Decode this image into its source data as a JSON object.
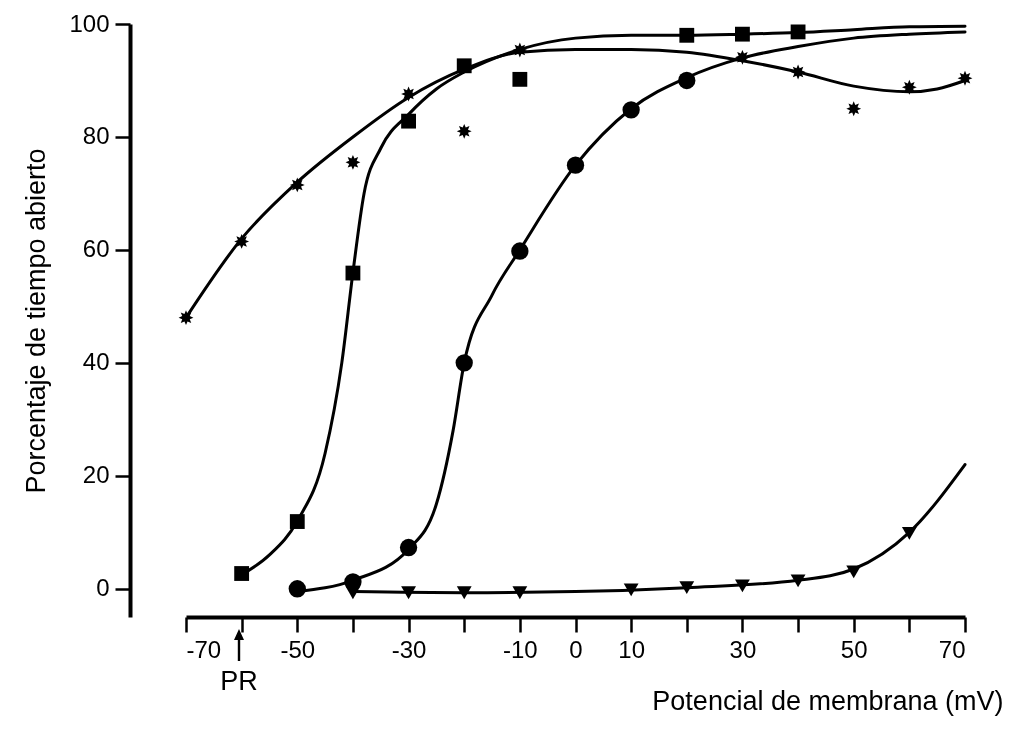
{
  "chart_data": {
    "type": "scatter",
    "xlabel": "Potencial de membrana (mV)",
    "ylabel": "Porcentaje de tiempo abierto",
    "xlim": [
      -70,
      70
    ],
    "ylim": [
      -5,
      100
    ],
    "xticks": [
      -70,
      {
        "value": -60,
        "label": null
      },
      -50,
      {
        "value": -40,
        "label": null
      },
      -30,
      {
        "value": -20,
        "label": null
      },
      -10,
      0,
      10,
      {
        "value": 20,
        "label": null
      },
      30,
      {
        "value": 40,
        "label": null
      },
      50,
      {
        "value": 60,
        "label": null
      },
      70
    ],
    "yticks": [
      0,
      20,
      40,
      60,
      80,
      100
    ],
    "grid": false,
    "annotations": [
      "PR"
    ],
    "series": [
      {
        "type": "line",
        "color": "#000000",
        "marker": "none",
        "line_style": "solid",
        "x": [
          -70,
          -60,
          -50,
          -40,
          -30,
          -20,
          -10,
          0,
          10,
          20,
          30,
          40,
          50,
          60,
          65,
          70
        ],
        "values": [
          48,
          62,
          72,
          80,
          87,
          92,
          95,
          95.5,
          95.5,
          95,
          93.5,
          91.5,
          89,
          88,
          88.5,
          90
        ]
      },
      {
        "type": "line",
        "color": "#000000",
        "marker": "none",
        "line_style": "solid",
        "x": [
          -60,
          -55,
          -50,
          -45,
          -42,
          -40,
          -38,
          -35,
          -30,
          -25,
          -20,
          -10,
          0,
          10,
          20,
          30,
          40,
          50,
          60,
          70
        ],
        "values": [
          2.5,
          6,
          12,
          24,
          40,
          56,
          70,
          78,
          84,
          88.5,
          91.5,
          95.5,
          97.5,
          98,
          98,
          98.2,
          98.5,
          99,
          99.5,
          99.6
        ]
      },
      {
        "type": "line",
        "color": "#000000",
        "marker": "none",
        "line_style": "solid",
        "x": [
          -50,
          -40,
          -30,
          -25,
          -22,
          -20,
          -15,
          -10,
          0,
          10,
          20,
          30,
          40,
          50,
          60,
          70
        ],
        "values": [
          -0.5,
          1.5,
          7,
          15,
          28,
          40,
          52,
          60,
          75,
          85,
          90.5,
          94,
          96,
          97.5,
          98.2,
          98.6
        ]
      },
      {
        "type": "line",
        "color": "#000000",
        "marker": "none",
        "line_style": "solid",
        "x": [
          -40,
          -20,
          0,
          20,
          40,
          50,
          60,
          70
        ],
        "values": [
          -0.5,
          -0.7,
          -0.5,
          0.2,
          1.5,
          3.5,
          10,
          22
        ]
      },
      {
        "color": "#000000",
        "marker": "star",
        "x": [
          -70,
          -60,
          -50,
          -40,
          -30,
          -20,
          -10,
          30,
          40,
          50,
          60,
          70
        ],
        "values": [
          48,
          61.5,
          71.5,
          75.5,
          87.6,
          81,
          95.4,
          94.1,
          91.5,
          85,
          88.8,
          90.4
        ]
      },
      {
        "color": "#000000",
        "marker": "square",
        "x": [
          -60,
          -50,
          -40,
          -30,
          -20,
          -10,
          20,
          30,
          40
        ],
        "values": [
          2.7,
          11.9,
          55.9,
          82.8,
          92.6,
          90.2,
          98,
          98.2,
          98.6
        ]
      },
      {
        "color": "#000000",
        "marker": "circle",
        "x": [
          -50,
          -40,
          -30,
          -20,
          -10,
          0,
          10,
          20
        ],
        "values": [
          0,
          1.2,
          7.3,
          40,
          59.8,
          75,
          84.8,
          90
        ]
      },
      {
        "color": "#000000",
        "marker": "triangle",
        "x": [
          -40,
          -30,
          -20,
          -10,
          10,
          20,
          30,
          40,
          50,
          60
        ],
        "values": [
          -0.7,
          -0.7,
          -0.7,
          -0.7,
          -0.2,
          0.2,
          0.5,
          1.4,
          3,
          9.8
        ]
      }
    ]
  }
}
